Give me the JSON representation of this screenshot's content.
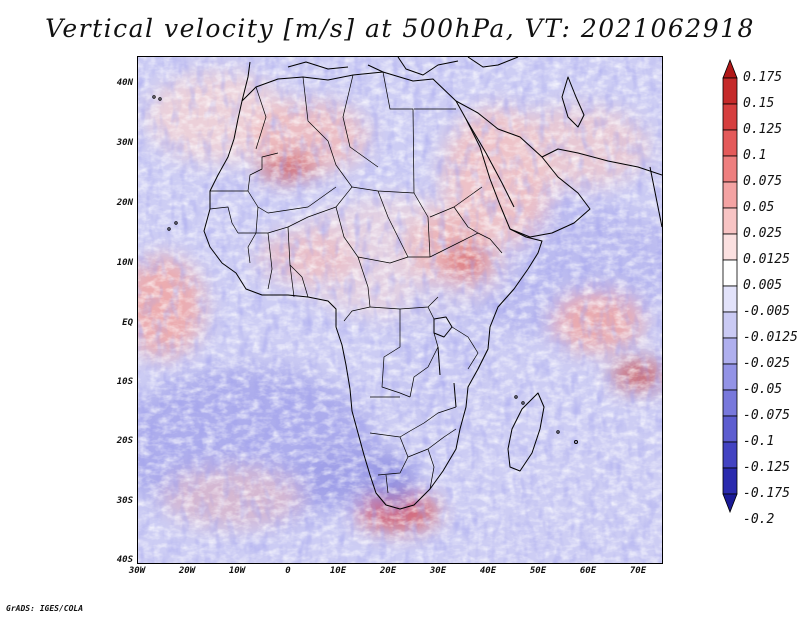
{
  "title": "Vertical velocity [m/s] at 500hPa, VT: 2021062918",
  "credit": "GrADS: IGES/COLA",
  "map": {
    "region": "Africa",
    "lat_labels": [
      "40N",
      "30N",
      "20N",
      "10N",
      "EQ",
      "10S",
      "20S",
      "30S",
      "40S"
    ],
    "lon_labels": [
      "30W",
      "20W",
      "10W",
      "0",
      "10E",
      "20E",
      "30E",
      "40E",
      "50E",
      "60E",
      "70E"
    ]
  },
  "colorbar": {
    "labels": [
      "0.175",
      "0.15",
      "0.125",
      "0.1",
      "0.075",
      "0.05",
      "0.025",
      "0.0125",
      "0.005",
      "-0.005",
      "-0.0125",
      "-0.025",
      "-0.05",
      "-0.075",
      "-0.1",
      "-0.125",
      "-0.175",
      "-0.2"
    ],
    "colors": [
      "#b01818",
      "#c52a2a",
      "#d63f3f",
      "#e45a5a",
      "#ee7f7f",
      "#f4a3a3",
      "#f8c4c4",
      "#fbe0e0",
      "#ffffff",
      "#e2e2fa",
      "#cacaf4",
      "#afafee",
      "#9393e6",
      "#7878dc",
      "#5d5dd0",
      "#4343c2",
      "#2a2aae",
      "#1a1a96"
    ]
  },
  "colors": {
    "background_blue": "#c9c9f3",
    "border": "#000000"
  }
}
